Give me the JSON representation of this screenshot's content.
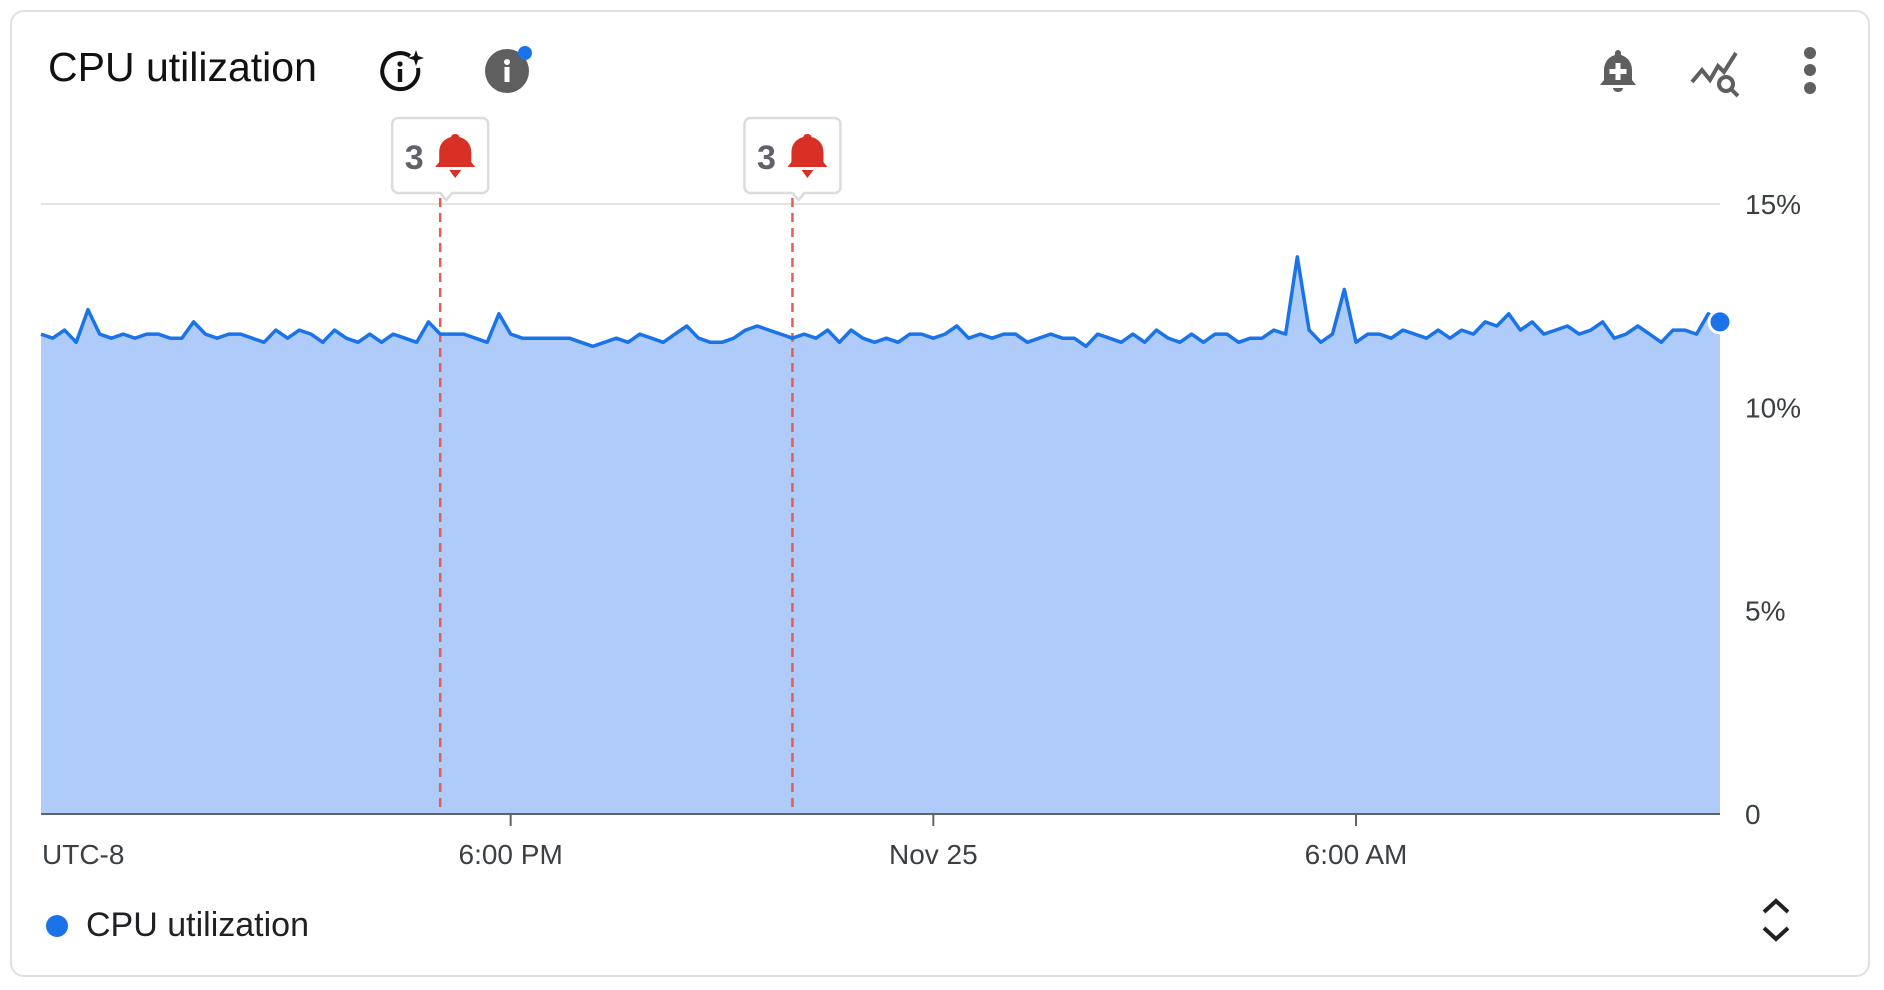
{
  "header": {
    "title": "CPU utilization",
    "icons": [
      "ai-info-sparkle-icon",
      "info-icon",
      "add-alert-bell-icon",
      "explore-chart-search-icon",
      "more-vert-icon"
    ],
    "info_badge_color": "#1a73e8"
  },
  "legend": {
    "label": "CPU utilization",
    "color": "#1a73e8"
  },
  "colors": {
    "line": "#1a73e8",
    "fill": "#aecbfa",
    "alert": "#e06055",
    "grid": "#e3e3e3",
    "axis": "#5f6368"
  },
  "chart_data": {
    "type": "area",
    "title": "CPU utilization",
    "timezone_label": "UTC-8",
    "xlim": [
      "Nov 24 11:20",
      "Nov 25 11:10"
    ],
    "x_start": "Nov 24 11:20",
    "interval_minutes": 10,
    "x_ticks": [
      {
        "label": "6:00 PM",
        "time": "Nov 24 18:00"
      },
      {
        "label": "Nov 25",
        "time": "Nov 25 00:00"
      },
      {
        "label": "6:00 AM",
        "time": "Nov 25 06:00"
      }
    ],
    "ylim": [
      0,
      15
    ],
    "y_ticks": [
      {
        "label": "0",
        "value": 0
      },
      {
        "label": "5%",
        "value": 5
      },
      {
        "label": "10%",
        "value": 10
      },
      {
        "label": "15%",
        "value": 15
      }
    ],
    "y_unit": "%",
    "grid": true,
    "legend_position": "bottom-left",
    "series": [
      {
        "name": "CPU utilization",
        "values": [
          11.8,
          11.7,
          11.9,
          11.6,
          12.4,
          11.8,
          11.7,
          11.8,
          11.7,
          11.8,
          11.8,
          11.7,
          11.7,
          12.1,
          11.8,
          11.7,
          11.8,
          11.8,
          11.7,
          11.6,
          11.9,
          11.7,
          11.9,
          11.8,
          11.6,
          11.9,
          11.7,
          11.6,
          11.8,
          11.6,
          11.8,
          11.7,
          11.6,
          12.1,
          11.8,
          11.8,
          11.8,
          11.7,
          11.6,
          12.3,
          11.8,
          11.7,
          11.7,
          11.7,
          11.7,
          11.7,
          11.6,
          11.5,
          11.6,
          11.7,
          11.6,
          11.8,
          11.7,
          11.6,
          11.8,
          12.0,
          11.7,
          11.6,
          11.6,
          11.7,
          11.9,
          12.0,
          11.9,
          11.8,
          11.7,
          11.8,
          11.7,
          11.9,
          11.6,
          11.9,
          11.7,
          11.6,
          11.7,
          11.6,
          11.8,
          11.8,
          11.7,
          11.8,
          12.0,
          11.7,
          11.8,
          11.7,
          11.8,
          11.8,
          11.6,
          11.7,
          11.8,
          11.7,
          11.7,
          11.5,
          11.8,
          11.7,
          11.6,
          11.8,
          11.6,
          11.9,
          11.7,
          11.6,
          11.8,
          11.6,
          11.8,
          11.8,
          11.6,
          11.7,
          11.7,
          11.9,
          11.8,
          13.7,
          11.9,
          11.6,
          11.8,
          12.9,
          11.6,
          11.8,
          11.8,
          11.7,
          11.9,
          11.8,
          11.7,
          11.9,
          11.7,
          11.9,
          11.8,
          12.1,
          12.0,
          12.3,
          11.9,
          12.1,
          11.8,
          11.9,
          12.0,
          11.8,
          11.9,
          12.1,
          11.7,
          11.8,
          12.0,
          11.8,
          11.6,
          11.9,
          11.9,
          11.8,
          12.3,
          12.1
        ]
      }
    ],
    "alerts": [
      {
        "time": "Nov 24 17:00",
        "count": "3"
      },
      {
        "time": "Nov 24 22:00",
        "count": "3"
      }
    ]
  }
}
